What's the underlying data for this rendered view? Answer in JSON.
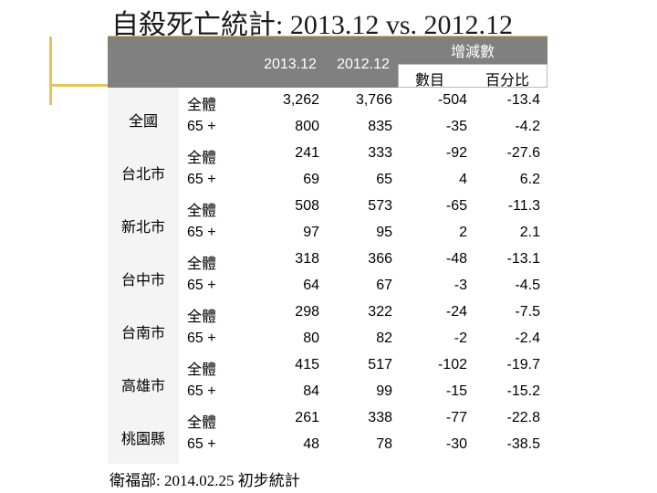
{
  "title": "自殺死亡統計: 2013.12 vs. 2012.12",
  "header": {
    "col_2013": "2013.12",
    "col_2012": "2012.12",
    "change": "增減數",
    "count": "數目",
    "percent": "百分比"
  },
  "rows": [
    {
      "city": "全國",
      "items": [
        {
          "type": "全體",
          "v2013": "3,262",
          "v2012": "3,766",
          "diff": "-504",
          "pct": "-13.4"
        },
        {
          "type": "65 +",
          "v2013": "800",
          "v2012": "835",
          "diff": "-35",
          "pct": "-4.2"
        }
      ]
    },
    {
      "city": "台北市",
      "items": [
        {
          "type": "全體",
          "v2013": "241",
          "v2012": "333",
          "diff": "-92",
          "pct": "-27.6"
        },
        {
          "type": "65 +",
          "v2013": "69",
          "v2012": "65",
          "diff": "4",
          "pct": "6.2"
        }
      ]
    },
    {
      "city": "新北市",
      "items": [
        {
          "type": "全體",
          "v2013": "508",
          "v2012": "573",
          "diff": "-65",
          "pct": "-11.3"
        },
        {
          "type": "65 +",
          "v2013": "97",
          "v2012": "95",
          "diff": "2",
          "pct": "2.1"
        }
      ]
    },
    {
      "city": "台中市",
      "items": [
        {
          "type": "全體",
          "v2013": "318",
          "v2012": "366",
          "diff": "-48",
          "pct": "-13.1"
        },
        {
          "type": "65 +",
          "v2013": "64",
          "v2012": "67",
          "diff": "-3",
          "pct": "-4.5"
        }
      ]
    },
    {
      "city": "台南市",
      "items": [
        {
          "type": "全體",
          "v2013": "298",
          "v2012": "322",
          "diff": "-24",
          "pct": "-7.5"
        },
        {
          "type": "65 +",
          "v2013": "80",
          "v2012": "82",
          "diff": "-2",
          "pct": "-2.4"
        }
      ]
    },
    {
      "city": "高雄市",
      "items": [
        {
          "type": "全體",
          "v2013": "415",
          "v2012": "517",
          "diff": "-102",
          "pct": "-19.7"
        },
        {
          "type": "65 +",
          "v2013": "84",
          "v2012": "99",
          "diff": "-15",
          "pct": "-15.2"
        }
      ]
    },
    {
      "city": "桃園縣",
      "items": [
        {
          "type": "全體",
          "v2013": "261",
          "v2012": "338",
          "diff": "-77",
          "pct": "-22.8"
        },
        {
          "type": "65 +",
          "v2013": "48",
          "v2012": "78",
          "diff": "-30",
          "pct": "-38.5"
        }
      ]
    }
  ],
  "footer": "衛福部: 2014.02.25 初步統計",
  "colors": {
    "header_band": "#808080",
    "accent_line": "#e6c45c",
    "city_column": "#f4f4f4"
  }
}
